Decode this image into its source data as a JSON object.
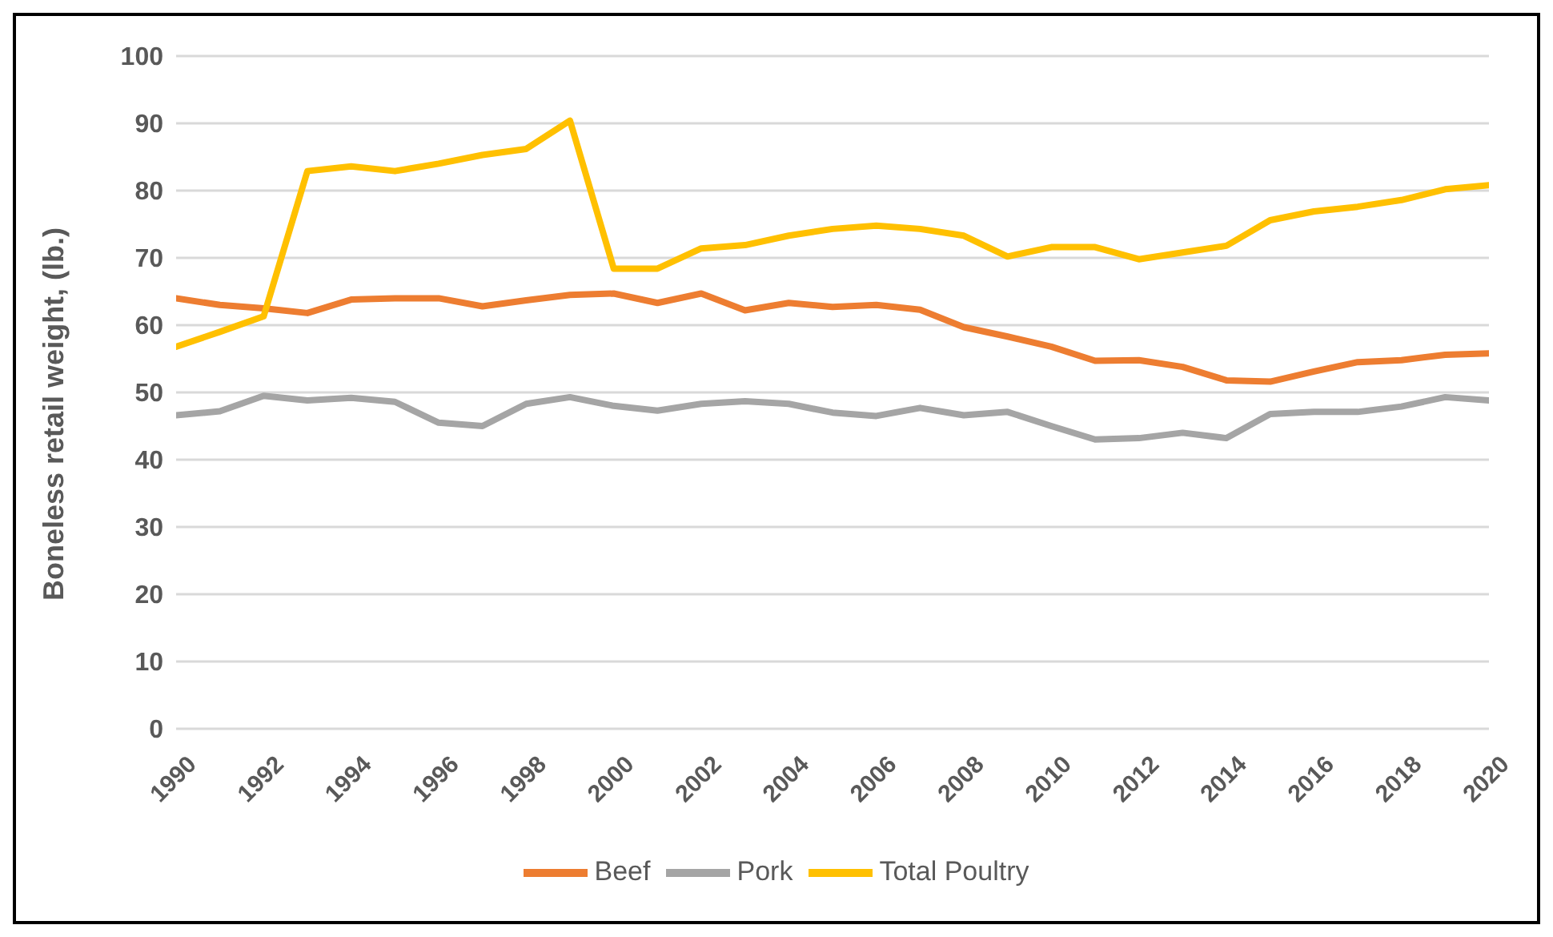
{
  "chart_data": {
    "type": "line",
    "ylabel": "Boneless retail weight, (lb.)",
    "x": [
      1990,
      1991,
      1992,
      1993,
      1994,
      1995,
      1996,
      1997,
      1998,
      1999,
      2000,
      2001,
      2002,
      2003,
      2004,
      2005,
      2006,
      2007,
      2008,
      2009,
      2010,
      2011,
      2012,
      2013,
      2014,
      2015,
      2016,
      2017,
      2018,
      2019,
      2020
    ],
    "series": [
      {
        "name": "Beef",
        "color": "#ed7d31",
        "values": [
          64,
          63,
          62.5,
          61.8,
          63.8,
          64,
          64,
          62.8,
          63.7,
          64.5,
          64.7,
          63.3,
          64.7,
          62.2,
          63.3,
          62.7,
          63,
          62.3,
          59.7,
          58.3,
          56.8,
          54.7,
          54.8,
          53.8,
          51.8,
          51.6,
          53.1,
          54.5,
          54.8,
          55.6,
          55.8
        ]
      },
      {
        "name": "Pork",
        "color": "#a5a5a5",
        "values": [
          46.6,
          47.2,
          49.5,
          48.8,
          49.2,
          48.6,
          45.5,
          45,
          48.3,
          49.3,
          48,
          47.3,
          48.3,
          48.7,
          48.3,
          47,
          46.5,
          47.7,
          46.6,
          47.1,
          45,
          43,
          43.2,
          44,
          43.2,
          46.8,
          47.1,
          47.1,
          47.9,
          49.3,
          48.8
        ]
      },
      {
        "name": "Total Poultry",
        "color": "#ffc000",
        "values": [
          56.8,
          59,
          61.3,
          82.9,
          83.6,
          82.9,
          84,
          85.3,
          86.2,
          90.4,
          68.4,
          68.4,
          71.4,
          71.9,
          73.3,
          74.3,
          74.8,
          74.3,
          73.3,
          70.2,
          71.6,
          71.6,
          69.8,
          70.8,
          71.8,
          75.6,
          76.9,
          77.6,
          78.6,
          80.2,
          80.8
        ]
      }
    ],
    "xlim": [
      1990,
      2020
    ],
    "xticks": [
      1990,
      1992,
      1994,
      1996,
      1998,
      2000,
      2002,
      2004,
      2006,
      2008,
      2010,
      2012,
      2014,
      2016,
      2018,
      2020
    ],
    "ylim": [
      0,
      100
    ],
    "yticks": [
      0,
      10,
      20,
      30,
      40,
      50,
      60,
      70,
      80,
      90,
      100
    ],
    "grid": "y",
    "legend": "bottom",
    "marker": "none",
    "line_style": "solid"
  }
}
